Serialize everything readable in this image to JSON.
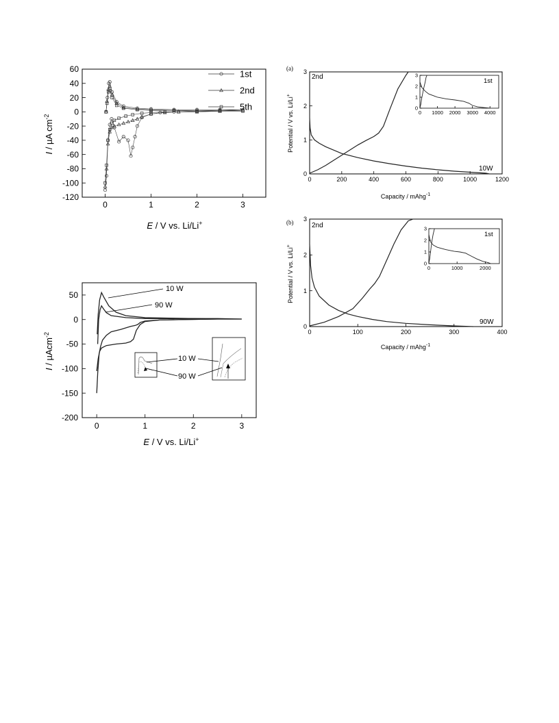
{
  "chart_data": [
    {
      "id": "cv1",
      "type": "scatter",
      "xlabel": "E / V vs. Li/Li+",
      "xlabel_parts": {
        "sym": "E",
        "rest": " / V vs. Li/Li",
        "sup": "+"
      },
      "ylabel": "I / µA cm-2",
      "ylabel_parts": {
        "sym": "I",
        "rest": " / µA cm",
        "sup": "-2"
      },
      "xlim": [
        -0.5,
        3.5
      ],
      "ylim": [
        -120,
        60
      ],
      "xticks": [
        "0",
        "1",
        "2",
        "3"
      ],
      "yticks": [
        "-120",
        "-100",
        "-80",
        "-60",
        "-40",
        "-20",
        "0",
        "20",
        "40",
        "60"
      ],
      "legend_position": "top-right",
      "series": [
        {
          "name": "1st",
          "marker": "circle",
          "x": [
            0.0,
            0.03,
            0.06,
            0.1,
            0.14,
            0.2,
            0.3,
            0.4,
            0.5,
            0.56,
            0.6,
            0.65,
            0.7,
            0.8,
            1.0,
            1.2,
            1.5,
            2.0,
            2.5,
            3.0,
            2.5,
            2.0,
            1.5,
            1.0,
            0.7,
            0.4,
            0.25,
            0.15,
            0.1,
            0.08,
            0.05,
            0.02
          ],
          "y": [
            -110,
            -90,
            -40,
            -18,
            -10,
            -22,
            -42,
            -35,
            -40,
            -62,
            -50,
            -35,
            -20,
            -8,
            -3,
            -1,
            0,
            1,
            2,
            3,
            3,
            3,
            3,
            4,
            5,
            8,
            14,
            28,
            42,
            40,
            20,
            0
          ]
        },
        {
          "name": "2nd",
          "marker": "triangle",
          "x": [
            0.0,
            0.03,
            0.06,
            0.1,
            0.15,
            0.2,
            0.3,
            0.4,
            0.5,
            0.6,
            0.7,
            0.8,
            1.0,
            1.3,
            1.6,
            2.0,
            2.5,
            3.0,
            2.5,
            2.0,
            1.5,
            1.0,
            0.7,
            0.4,
            0.25,
            0.15,
            0.1,
            0.07,
            0.04,
            0.02
          ],
          "y": [
            -105,
            -80,
            -45,
            -28,
            -22,
            -20,
            -18,
            -16,
            -14,
            -12,
            -10,
            -7,
            -3,
            -1,
            0,
            0,
            1,
            2,
            2,
            2,
            2,
            3,
            4,
            6,
            12,
            24,
            36,
            32,
            15,
            0
          ]
        },
        {
          "name": "5th",
          "marker": "square",
          "x": [
            0.0,
            0.03,
            0.06,
            0.1,
            0.15,
            0.2,
            0.3,
            0.45,
            0.6,
            0.8,
            1.0,
            1.3,
            1.6,
            2.0,
            2.5,
            3.0,
            2.5,
            2.0,
            1.5,
            1.0,
            0.7,
            0.4,
            0.25,
            0.15,
            0.1,
            0.07,
            0.04,
            0.02
          ],
          "y": [
            -100,
            -75,
            -40,
            -25,
            -16,
            -12,
            -9,
            -6,
            -4,
            -2,
            -1,
            0,
            0,
            0,
            1,
            1,
            1,
            1,
            2,
            2,
            3,
            5,
            9,
            20,
            30,
            28,
            12,
            0
          ]
        }
      ]
    },
    {
      "id": "cv2",
      "type": "line",
      "xlabel": "E / V vs. Li/Li+",
      "xlabel_parts": {
        "sym": "E",
        "rest": " / V vs. Li/Li",
        "sup": "+"
      },
      "ylabel": "I / µAcm-2",
      "ylabel_parts": {
        "sym": "I",
        "rest": " / µAcm",
        "sup": "-2"
      },
      "xlim": [
        -0.3,
        3.3
      ],
      "ylim": [
        -200,
        75
      ],
      "xticks": [
        "0",
        "1",
        "2",
        "3"
      ],
      "yticks": [
        "-200",
        "-150",
        "-100",
        "-50",
        "0",
        "50"
      ],
      "series": [
        {
          "name": "10 W",
          "x": [
            0.0,
            0.02,
            0.05,
            0.08,
            0.12,
            0.2,
            0.3,
            0.5,
            0.7,
            0.8,
            0.85,
            0.9,
            1.0,
            1.3,
            1.8,
            2.5,
            3.0,
            2.5,
            2.0,
            1.5,
            1.0,
            0.6,
            0.4,
            0.25,
            0.15,
            0.1,
            0.06,
            0.03,
            0.01
          ],
          "y": [
            -150,
            -110,
            -70,
            -55,
            -42,
            -32,
            -25,
            -20,
            -14,
            -12,
            -10,
            -6,
            -3,
            -1,
            0,
            1,
            1,
            2,
            2,
            3,
            4,
            8,
            15,
            28,
            45,
            55,
            40,
            10,
            -30
          ]
        },
        {
          "name": "90 W",
          "x": [
            0.0,
            0.03,
            0.06,
            0.1,
            0.2,
            0.4,
            0.6,
            0.7,
            0.76,
            0.82,
            0.9,
            1.0,
            1.3,
            1.8,
            2.5,
            3.0,
            2.5,
            2.0,
            1.5,
            1.0,
            0.6,
            0.3,
            0.2,
            0.14,
            0.1,
            0.07,
            0.04,
            0.02
          ],
          "y": [
            -105,
            -80,
            -65,
            -58,
            -53,
            -50,
            -48,
            -45,
            -40,
            -22,
            -10,
            -4,
            -1,
            0,
            1,
            1,
            1,
            2,
            2,
            2,
            4,
            8,
            14,
            22,
            28,
            20,
            0,
            -50
          ]
        }
      ],
      "annotations": [
        "10 W",
        "90 W"
      ],
      "inset_labels": [
        "10 W",
        "90 W"
      ]
    },
    {
      "id": "gcd_a",
      "type": "line",
      "panel_label": "(a)",
      "corner_label": "2nd",
      "series_label": "10W",
      "xlabel": "Capacity / mAhg-1",
      "xlabel_parts": {
        "rest": "Capacity / mAhg",
        "sup": "-1"
      },
      "ylabel": "Potential / V vs. Li/Li+",
      "ylabel_parts": {
        "rest": "Potential / V vs. Li/Li",
        "sup": "+"
      },
      "xlim": [
        0,
        1200
      ],
      "ylim": [
        0,
        3
      ],
      "xticks": [
        "0",
        "200",
        "400",
        "600",
        "800",
        "1000",
        "1200"
      ],
      "yticks": [
        "0",
        "1",
        "2",
        "3"
      ],
      "series": [
        {
          "name": "discharge",
          "x": [
            0,
            3,
            10,
            30,
            60,
            100,
            200,
            300,
            400,
            500,
            600,
            700,
            800,
            900,
            1000,
            1100,
            1120
          ],
          "y": [
            1.65,
            1.35,
            1.15,
            1.0,
            0.9,
            0.8,
            0.6,
            0.48,
            0.38,
            0.3,
            0.23,
            0.17,
            0.12,
            0.08,
            0.05,
            0.02,
            0.0
          ]
        },
        {
          "name": "charge",
          "x": [
            0,
            50,
            100,
            150,
            200,
            250,
            300,
            350,
            400,
            430,
            460,
            500,
            550,
            600,
            615
          ],
          "y": [
            0.02,
            0.12,
            0.25,
            0.4,
            0.55,
            0.7,
            0.85,
            0.98,
            1.1,
            1.2,
            1.4,
            1.9,
            2.5,
            2.9,
            3.0
          ]
        }
      ],
      "inset": {
        "corner_label": "1st",
        "xlim": [
          0,
          4500
        ],
        "ylim": [
          0,
          3
        ],
        "xticks": [
          "0",
          "1000",
          "2000",
          "3000",
          "4000"
        ],
        "yticks": [
          "0",
          "1",
          "2",
          "3"
        ],
        "series": [
          {
            "name": "discharge",
            "x": [
              0,
              100,
              300,
              500,
              1000,
              1500,
              2000,
              2500,
              2800,
              3000,
              3300,
              3600,
              3800,
              4000
            ],
            "y": [
              2.4,
              1.9,
              1.55,
              1.3,
              1.0,
              0.85,
              0.75,
              0.62,
              0.45,
              0.25,
              0.12,
              0.06,
              0.03,
              0.0
            ]
          },
          {
            "name": "charge",
            "x": [
              0,
              50,
              100,
              200,
              300,
              350,
              400
            ],
            "y": [
              0.05,
              0.35,
              0.9,
              1.7,
              2.4,
              2.8,
              3.0
            ]
          }
        ]
      }
    },
    {
      "id": "gcd_b",
      "type": "line",
      "panel_label": "(b)",
      "corner_label": "2nd",
      "series_label": "90W",
      "xlabel": "Capacity / mAhg-1",
      "xlabel_parts": {
        "rest": "Capacity / mAhg",
        "sup": "-1"
      },
      "ylabel": "Potential / V vs. Li/Li+",
      "ylabel_parts": {
        "rest": "Potential / V vs. Li/Li",
        "sup": "+"
      },
      "xlim": [
        0,
        400
      ],
      "ylim": [
        0,
        3
      ],
      "xticks": [
        "0",
        "100",
        "200",
        "300",
        "400"
      ],
      "yticks": [
        "0",
        "1",
        "2",
        "3"
      ],
      "series": [
        {
          "name": "discharge",
          "x": [
            0,
            2,
            5,
            10,
            20,
            40,
            60,
            80,
            100,
            130,
            160,
            200,
            250,
            300,
            340
          ],
          "y": [
            2.3,
            1.7,
            1.35,
            1.1,
            0.85,
            0.6,
            0.45,
            0.35,
            0.28,
            0.2,
            0.14,
            0.09,
            0.05,
            0.02,
            0.0
          ]
        },
        {
          "name": "charge",
          "x": [
            0,
            30,
            60,
            90,
            110,
            125,
            135,
            145,
            160,
            175,
            190,
            205,
            215
          ],
          "y": [
            0.02,
            0.12,
            0.28,
            0.5,
            0.8,
            1.05,
            1.2,
            1.4,
            1.85,
            2.3,
            2.7,
            2.95,
            3.0
          ]
        }
      ],
      "inset": {
        "corner_label": "1st",
        "xlim": [
          0,
          2500
        ],
        "ylim": [
          0,
          3
        ],
        "xticks": [
          "0",
          "1000",
          "2000"
        ],
        "yticks": [
          "0",
          "1",
          "2",
          "3"
        ],
        "series": [
          {
            "name": "discharge",
            "x": [
              0,
              50,
              150,
              300,
              600,
              900,
              1100,
              1300,
              1500,
              1700,
              1900,
              2100,
              2200
            ],
            "y": [
              2.5,
              1.9,
              1.6,
              1.4,
              1.2,
              1.05,
              1.0,
              0.9,
              0.65,
              0.4,
              0.2,
              0.08,
              0.0
            ]
          },
          {
            "name": "charge",
            "x": [
              0,
              30,
              60,
              100,
              150,
              200
            ],
            "y": [
              0.05,
              0.4,
              1.0,
              1.8,
              2.5,
              3.0
            ]
          }
        ]
      }
    }
  ]
}
